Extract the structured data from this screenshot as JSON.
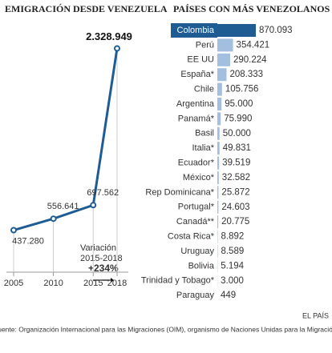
{
  "chart_data": [
    {
      "type": "line",
      "title": "EMIGRACIÓN DESDE VENEZUELA",
      "x": [
        2005,
        2010,
        2015,
        2018
      ],
      "series": [
        {
          "name": "Emigración",
          "color": "#1f5c94",
          "values": [
            437280,
            556641,
            697562,
            2328949
          ],
          "value_labels": [
            "437.280",
            "556.641",
            "697.562",
            "2.328.949"
          ]
        }
      ],
      "xlim": [
        2005,
        2018
      ],
      "xticks": [
        2005,
        2010,
        2015,
        2018
      ],
      "ylim": [
        0,
        2500000
      ],
      "annotations": [
        "Variación",
        "2015-2018",
        "+234%"
      ]
    },
    {
      "type": "barh",
      "title": "PAÍSES CON MÁS VENEZOLANOS",
      "categories": [
        "Colombia",
        "Perú",
        "EE UU",
        "España*",
        "Chile",
        "Argentina",
        "Panamá*",
        "Basil",
        "Italia*",
        "Ecuador*",
        "México*",
        "Rep Dominicana*",
        "Portugal*",
        "Canadá**",
        "Costa Rica*",
        "Uruguay",
        "Bolivia",
        "Trinidad y Tobago*",
        "Paraguay"
      ],
      "values": [
        870093,
        354421,
        290224,
        208333,
        105756,
        95000,
        75990,
        50000,
        49831,
        39519,
        32582,
        25872,
        24603,
        20775,
        8892,
        8589,
        5194,
        3000,
        449
      ],
      "value_labels": [
        "870.093",
        "354.421",
        "290.224",
        "208.333",
        "105.756",
        "95.000",
        "75.990",
        "50.000",
        "49.831",
        "39.519",
        "32.582",
        "25.872",
        "24.603",
        "20.775",
        "8.892",
        "8.589",
        "5.194",
        "3.000",
        "449"
      ],
      "colors": [
        "#1f5c94",
        "#a3bfe0",
        "#a3bfe0",
        "#a3bfe0",
        "#a3bfe0",
        "#a3bfe0",
        "#a3bfe0",
        "#a3bfe0",
        "#a3bfe0",
        "#a3bfe0",
        "#a3bfe0",
        "#a3bfe0",
        "#a3bfe0",
        "#a3bfe0",
        "#a3bfe0",
        "#a3bfe0",
        "#a3bfe0",
        "#a3bfe0",
        "#a3bfe0"
      ],
      "xlim": [
        0,
        870093
      ]
    }
  ],
  "source": "Fuente: Organización Internacional para las Migraciones (OIM), organismo de Naciones Unidas para la Migración.",
  "credit": "EL PAÍS"
}
